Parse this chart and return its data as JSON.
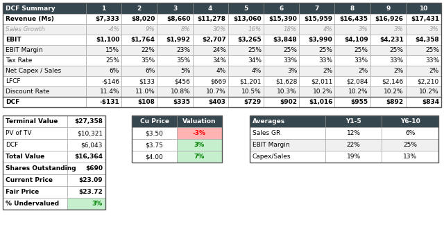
{
  "title": "DCF Summary",
  "header_cols": [
    "DCF Summary",
    "1",
    "2",
    "3",
    "4",
    "5",
    "6",
    "7",
    "8",
    "9",
    "10"
  ],
  "rows": [
    [
      "Revenue (Ms)",
      "$7,333",
      "$8,020",
      "$8,660",
      "$11,278",
      "$13,060",
      "$15,390",
      "$15,959",
      "$16,435",
      "$16,926",
      "$17,431"
    ],
    [
      "Sales Growth",
      "-4%",
      "9%",
      "8%",
      "30%",
      "16%",
      "18%",
      "4%",
      "3%",
      "3%",
      "3%"
    ],
    [
      "EBIT",
      "$1,100",
      "$1,764",
      "$1,992",
      "$2,707",
      "$3,265",
      "$3,848",
      "$3,990",
      "$4,109",
      "$4,231",
      "$4,358"
    ],
    [
      "EBIT Margin",
      "15%",
      "22%",
      "23%",
      "24%",
      "25%",
      "25%",
      "25%",
      "25%",
      "25%",
      "25%"
    ],
    [
      "Tax Rate",
      "25%",
      "35%",
      "35%",
      "34%",
      "34%",
      "33%",
      "33%",
      "33%",
      "33%",
      "33%"
    ],
    [
      "Net Capex / Sales",
      "6%",
      "6%",
      "5%",
      "4%",
      "4%",
      "3%",
      "2%",
      "2%",
      "2%",
      "2%"
    ],
    [
      "LFCF",
      "-$146",
      "$133",
      "$456",
      "$669",
      "$1,201",
      "$1,628",
      "$2,011",
      "$2,084",
      "$2,146",
      "$2,210"
    ],
    [
      "Discount Rate",
      "11.4%",
      "11.0%",
      "10.8%",
      "10.7%",
      "10.5%",
      "10.3%",
      "10.2%",
      "10.2%",
      "10.2%",
      "10.2%"
    ],
    [
      "DCF",
      "-$131",
      "$108",
      "$335",
      "$403",
      "$729",
      "$902",
      "$1,016",
      "$955",
      "$892",
      "$834"
    ]
  ],
  "summary_rows": [
    [
      "Terminal Value",
      "$27,358"
    ],
    [
      "PV of TV",
      "$10,321"
    ],
    [
      "DCF",
      "$6,043"
    ],
    [
      "Total Value",
      "$16,364"
    ],
    [
      "Shares Outstanding",
      "$690"
    ],
    [
      "Current Price",
      "$23.09"
    ],
    [
      "Fair Price",
      "$23.72"
    ],
    [
      "% Undervalued",
      "3%"
    ]
  ],
  "summary_bold_rows": [
    0,
    3,
    4,
    5,
    6,
    7
  ],
  "cu_price_header": [
    "Cu Price",
    "Valuation"
  ],
  "cu_price_rows": [
    [
      "$3.50",
      "-3%"
    ],
    [
      "$3.75",
      "3%"
    ],
    [
      "$4.00",
      "7%"
    ]
  ],
  "cu_price_colors": [
    "#ffb3b3",
    "#c6efce",
    "#c6efce"
  ],
  "cu_price_text_colors": [
    "#ff0000",
    "#008000",
    "#008000"
  ],
  "averages_header": [
    "Averages",
    "Y1-5",
    "Y6-10"
  ],
  "averages_rows": [
    [
      "Sales GR",
      "12%",
      "6%"
    ],
    [
      "EBIT Margin",
      "22%",
      "25%"
    ],
    [
      "Capex/Sales",
      "19%",
      "13%"
    ]
  ],
  "header_bg": "#37474f",
  "header_fg": "#ffffff",
  "bold_rows_main": [
    0,
    2,
    8
  ],
  "italic_rows_main": [
    1
  ],
  "italic_color": "#999999",
  "undervalued_bg": "#c6efce",
  "undervalued_fg": "#008000",
  "dcf_row_bg": "#f0f0f0"
}
